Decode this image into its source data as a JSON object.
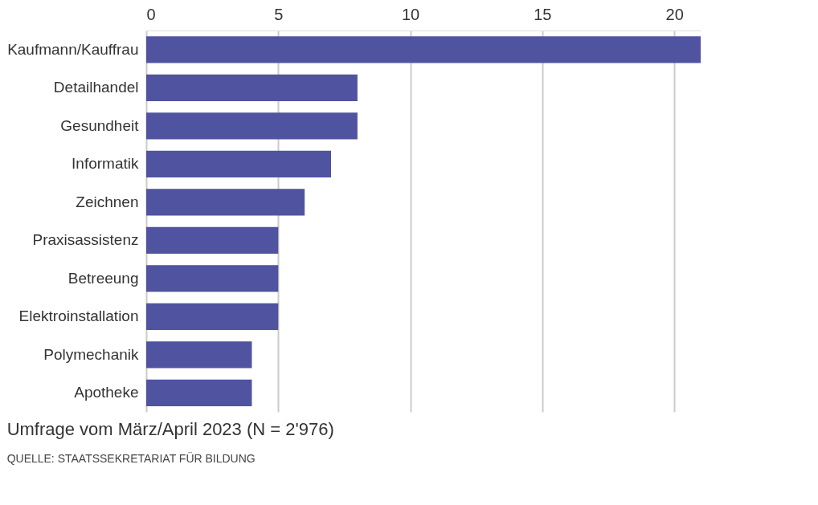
{
  "chart_data": {
    "type": "bar",
    "orientation": "horizontal",
    "categories": [
      "Kaufmann/Kauffrau",
      "Detailhandel",
      "Gesundheit",
      "Informatik",
      "Zeichnen",
      "Praxisassistenz",
      "Betreeung",
      "Elektroinstallation",
      "Polymechanik",
      "Apotheke"
    ],
    "values": [
      21,
      8,
      8,
      7,
      6,
      5,
      5,
      5,
      4,
      4
    ],
    "color": "#5053a0",
    "xlim": [
      0,
      21
    ],
    "xticks": [
      0,
      5,
      10,
      15,
      20
    ],
    "grid": "x",
    "annotations": [
      "Umfrage vom März/April 2023 (N = 2'976)",
      "QUELLE: STAATSSEKRETARIAT FÜR BILDUNG"
    ]
  }
}
